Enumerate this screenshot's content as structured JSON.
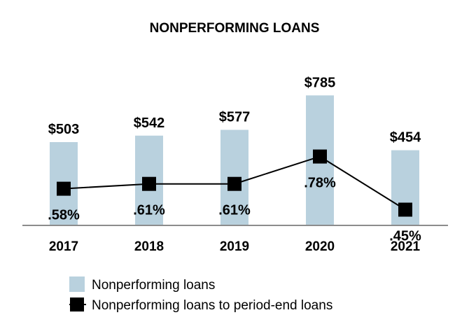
{
  "chart_data": {
    "type": "bar",
    "title": "NONPERFORMING LOANS",
    "categories": [
      "2017",
      "2018",
      "2019",
      "2020",
      "2021"
    ],
    "series": [
      {
        "name": "Nonperforming loans",
        "type": "bar",
        "values": [
          503,
          542,
          577,
          785,
          454
        ],
        "labels": [
          "$503",
          "$542",
          "$577",
          "$785",
          "$454"
        ],
        "color": "#b9d1de"
      },
      {
        "name": "Nonperforming loans to period-end loans",
        "type": "line",
        "values": [
          0.58,
          0.61,
          0.61,
          0.78,
          0.45
        ],
        "labels": [
          ".58%",
          ".61%",
          ".61%",
          ".78%",
          ".45%"
        ],
        "color": "#000000"
      }
    ],
    "grid": false,
    "legend": "bottom"
  }
}
